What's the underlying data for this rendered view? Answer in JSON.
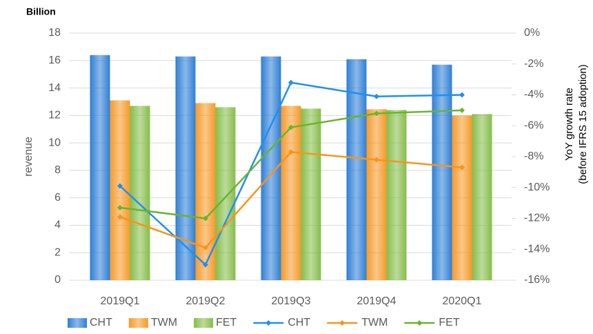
{
  "chart_data": {
    "type": "bar_line",
    "unit_label": "Billion",
    "ylabel": "revenue",
    "y2label": [
      "YoY growth rate",
      "(before IFRS  15 adoption)"
    ],
    "categories": [
      "2019Q1",
      "2019Q2",
      "2019Q3",
      "2019Q4",
      "2020Q1"
    ],
    "series": [
      {
        "name": "CHT",
        "type": "bar",
        "color": "#2e7fd6",
        "values": [
          16.4,
          16.3,
          16.3,
          16.1,
          15.7
        ]
      },
      {
        "name": "TWM",
        "type": "bar",
        "color": "#f59a2a",
        "values": [
          13.1,
          12.9,
          12.7,
          12.45,
          12.0
        ]
      },
      {
        "name": "FET",
        "type": "bar",
        "color": "#86bd4a",
        "values": [
          12.7,
          12.6,
          12.5,
          12.4,
          12.1
        ]
      },
      {
        "name": "CHT",
        "type": "line",
        "axis": "y2",
        "color": "#1e90f0",
        "values": [
          -9.9,
          -15.0,
          -3.2,
          -4.1,
          -4.0
        ]
      },
      {
        "name": "TWM",
        "type": "line",
        "axis": "y2",
        "color": "#f7941d",
        "values": [
          -11.9,
          -13.9,
          -7.7,
          -8.2,
          -8.7
        ]
      },
      {
        "name": "FET",
        "type": "line",
        "axis": "y2",
        "color": "#6ab42d",
        "values": [
          -11.3,
          -12.0,
          -6.1,
          -5.2,
          -5.0
        ]
      }
    ],
    "ylim": [
      0,
      18
    ],
    "yticks": [
      0,
      2,
      4,
      6,
      8,
      10,
      12,
      14,
      16,
      18
    ],
    "y2lim": [
      -16,
      0
    ],
    "y2ticks": [
      {
        "value": 0,
        "label": "0%"
      },
      {
        "value": -2,
        "label": "-2%"
      },
      {
        "value": -4,
        "label": "-4%"
      },
      {
        "value": -6,
        "label": "-6%"
      },
      {
        "value": -8,
        "label": "-8%"
      },
      {
        "value": -10,
        "label": "-10%"
      },
      {
        "value": -12,
        "label": "-12%"
      },
      {
        "value": -14,
        "label": "-14%"
      },
      {
        "value": -16,
        "label": "-16%"
      }
    ],
    "grid": true,
    "legend": "bottom"
  }
}
